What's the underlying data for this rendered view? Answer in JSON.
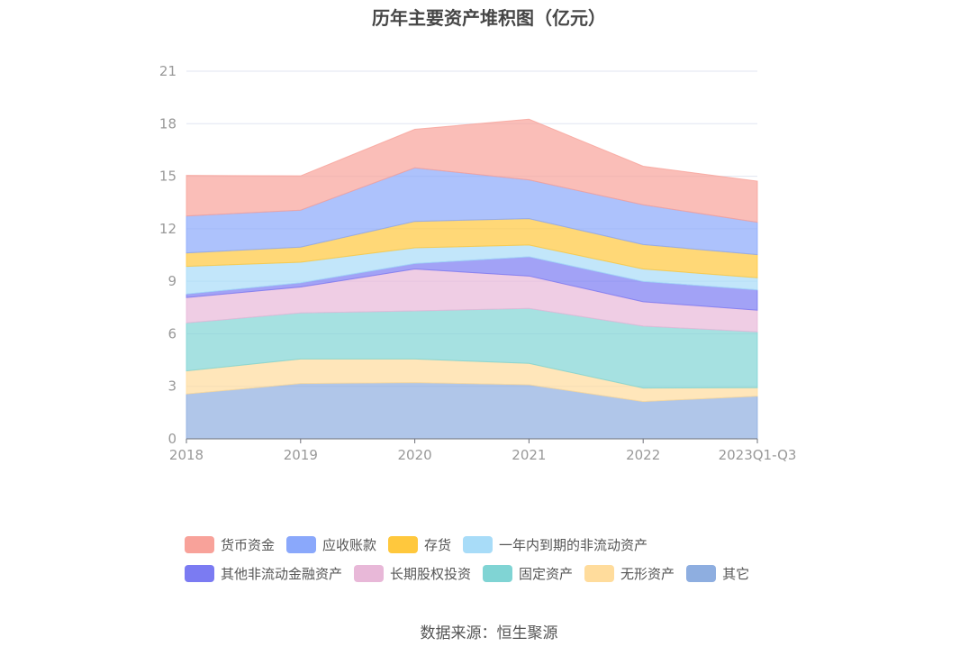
{
  "chart_data": {
    "type": "area",
    "stacked": true,
    "title": "历年主要资产堆积图（亿元）",
    "xlabel": "",
    "ylabel": "",
    "categories": [
      "2018",
      "2019",
      "2020",
      "2021",
      "2022",
      "2023Q1-Q3"
    ],
    "ylim": [
      0,
      21
    ],
    "yticks": [
      0,
      3,
      6,
      9,
      12,
      15,
      18,
      21
    ],
    "grid": true,
    "legend_position": "bottom",
    "series": [
      {
        "name": "其它",
        "color": "#8eaee0",
        "values": [
          2.56,
          3.16,
          3.21,
          3.09,
          2.13,
          2.44
        ]
      },
      {
        "name": "无形资产",
        "color": "#ffdc9c",
        "values": [
          1.32,
          1.4,
          1.35,
          1.22,
          0.77,
          0.48
        ]
      },
      {
        "name": "固定资产",
        "color": "#80d4d4",
        "values": [
          2.74,
          2.63,
          2.75,
          3.14,
          3.54,
          3.19
        ]
      },
      {
        "name": "长期股权投资",
        "color": "#e8b8d8",
        "values": [
          1.45,
          1.48,
          2.39,
          1.85,
          1.39,
          1.24
        ]
      },
      {
        "name": "其他非流动金融资产",
        "color": "#7b7bf2",
        "values": [
          0.2,
          0.24,
          0.31,
          1.1,
          1.16,
          1.16
        ]
      },
      {
        "name": "一年内到期的非流动资产",
        "color": "#a8dcf8",
        "values": [
          1.58,
          1.18,
          0.9,
          0.67,
          0.71,
          0.69
        ]
      },
      {
        "name": "存货",
        "color": "#ffc83d",
        "values": [
          0.77,
          0.86,
          1.51,
          1.51,
          1.4,
          1.32
        ]
      },
      {
        "name": "应收账款",
        "color": "#8aa8fb",
        "values": [
          2.11,
          2.11,
          3.06,
          2.21,
          2.27,
          1.85
        ]
      },
      {
        "name": "货币资金",
        "color": "#f8a29a",
        "values": [
          2.32,
          1.96,
          2.2,
          3.47,
          2.2,
          2.35
        ]
      }
    ],
    "legend_order": [
      "货币资金",
      "应收账款",
      "存货",
      "一年内到期的非流动资产",
      "其他非流动金融资产",
      "长期股权投资",
      "固定资产",
      "无形资产",
      "其它"
    ],
    "source": "数据来源：恒生聚源"
  }
}
